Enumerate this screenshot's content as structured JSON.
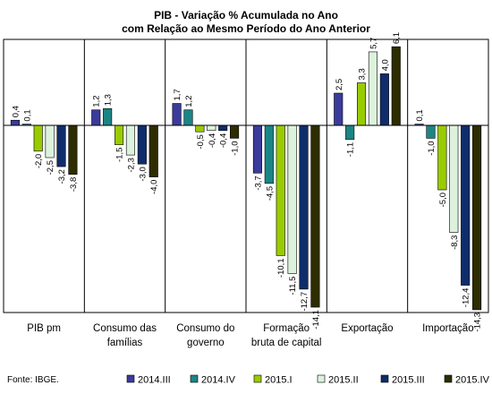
{
  "chart_data": {
    "type": "bar",
    "title": "PIB - Variação % Acumulada no Ano",
    "subtitle": "com Relação ao Mesmo Período do Ano Anterior",
    "categories": [
      [
        "PIB pm"
      ],
      [
        "Consumo das",
        "famílias"
      ],
      [
        "Consumo do",
        "governo"
      ],
      [
        "Formação",
        "bruta de capital"
      ],
      [
        "Exportação"
      ],
      [
        "Importação"
      ]
    ],
    "series": [
      {
        "name": "2014.III",
        "color": "#3b3b9c",
        "values": [
          0.4,
          1.2,
          1.7,
          -3.7,
          2.5,
          0.1
        ],
        "labels": [
          "0,4",
          "1,2",
          "1,7",
          "-3,7",
          "2,5",
          "0,1"
        ]
      },
      {
        "name": "2014.IV",
        "color": "#1b8585",
        "values": [
          0.1,
          1.3,
          1.2,
          -4.5,
          -1.1,
          -1.0
        ],
        "labels": [
          "0,1",
          "1,3",
          "1,2",
          "-4,5",
          "-1,1",
          "-1,0"
        ]
      },
      {
        "name": "2015.I",
        "color": "#99cc00",
        "values": [
          -2.0,
          -1.5,
          -0.5,
          -10.1,
          3.3,
          -5.0
        ],
        "labels": [
          "-2,0",
          "-1,5",
          "-0,5",
          "-10,1",
          "3,3",
          "-5,0"
        ]
      },
      {
        "name": "2015.II",
        "color": "#ddf2dd",
        "values": [
          -2.5,
          -2.3,
          -0.4,
          -11.5,
          5.7,
          -8.3
        ],
        "labels": [
          "-2,5",
          "-2,3",
          "-0,4",
          "-11,5",
          "5,7",
          "-8,3"
        ]
      },
      {
        "name": "2015.III",
        "color": "#0f2d6b",
        "values": [
          -3.2,
          -3.0,
          -0.4,
          -12.7,
          4.0,
          -12.4
        ],
        "labels": [
          "-3,2",
          "-3,0",
          "-0,4",
          "-12,7",
          "4,0",
          "-12,4"
        ]
      },
      {
        "name": "2015.IV",
        "color": "#2d2d00",
        "values": [
          -3.8,
          -4.0,
          -1.0,
          -14.1,
          6.1,
          -14.3
        ],
        "labels": [
          "-3,8",
          "-4,0",
          "-1,0",
          "-14,1",
          "6,1",
          "-14,3"
        ]
      }
    ],
    "ylim": [
      -15,
      7.5
    ],
    "grid": false,
    "legend_position": "bottom",
    "source": "Fonte: IBGE."
  }
}
